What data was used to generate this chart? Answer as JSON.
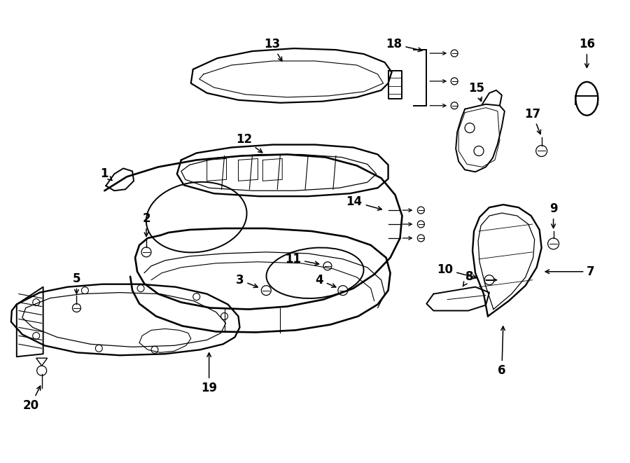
{
  "bg_color": "#ffffff",
  "lc": "#000000",
  "lw": 1.4,
  "fs": 12
}
